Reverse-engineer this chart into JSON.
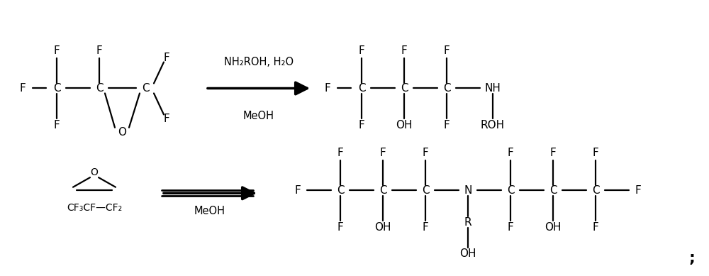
{
  "bg_color": "#ffffff",
  "text_color": "#000000",
  "fig_width": 10.0,
  "fig_height": 3.89,
  "dpi": 100,
  "reaction1_reagent": "NH₂ROH, H₂O",
  "reaction1_solvent": "MeOH",
  "reaction2_solvent": "MeOH",
  "semicolon": ";"
}
